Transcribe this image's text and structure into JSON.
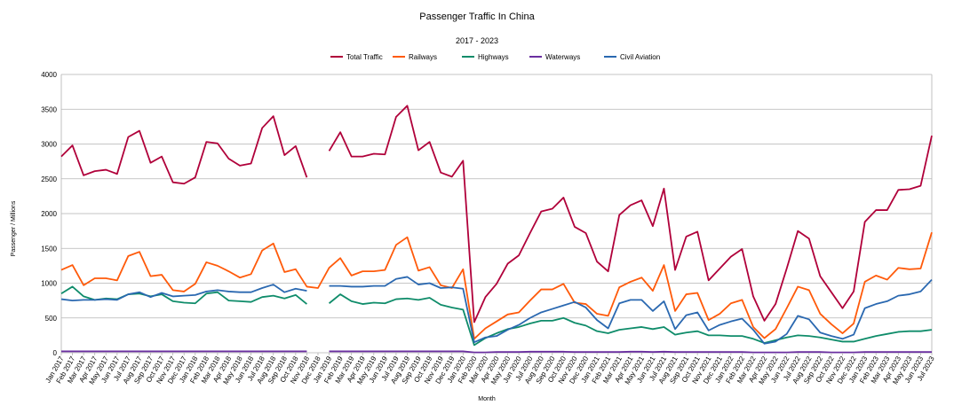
{
  "chart_data": {
    "type": "line",
    "title": "Passenger Traffic In China",
    "subtitle": "2017 - 2023",
    "xlabel": "Month",
    "ylabel": "Passenger / Millions",
    "ylim": [
      0,
      4000
    ],
    "yticks": [
      0,
      500,
      1000,
      1500,
      2000,
      2500,
      3000,
      3500,
      4000
    ],
    "grid": true,
    "legend": "top-center",
    "categories": [
      "Jan 2017",
      "Feb 2017",
      "Mar 2017",
      "Apr 2017",
      "May 2017",
      "Jun 2017",
      "Jul 2017",
      "Aug 2017",
      "Sep 2017",
      "Oct 2017",
      "Nov 2017",
      "Dec 2017",
      "Jan 2018",
      "Feb 2018",
      "Mar 2018",
      "Apr 2018",
      "May 2018",
      "Jun 2018",
      "Jul 2018",
      "Aug 2018",
      "Sep 2018",
      "Oct 2018",
      "Nov 2018",
      "Dec 2018",
      "Jan 2019",
      "Feb 2019",
      "Mar 2019",
      "Apr 2019",
      "May 2019",
      "Jun 2019",
      "Jul 2019",
      "Aug 2019",
      "Sep 2019",
      "Oct 2019",
      "Nov 2019",
      "Dec 2019",
      "Jan 2020",
      "Feb 2020",
      "Mar 2020",
      "Apr 2020",
      "May 2020",
      "Jun 2020",
      "Jul 2020",
      "Aug 2020",
      "Sep 2020",
      "Oct 2020",
      "Nov 2020",
      "Dec 2020",
      "Jan 2021",
      "Feb 2021",
      "Mar 2021",
      "Apr 2021",
      "May 2021",
      "Jun 2021",
      "Jul 2021",
      "Aug 2021",
      "Sep 2021",
      "Oct 2021",
      "Nov 2021",
      "Dec 2021",
      "Jan 2022",
      "Feb 2022",
      "Mar 2022",
      "Apr 2022",
      "May 2022",
      "Jun 2022",
      "Jul 2022",
      "Aug 2022",
      "Sep 2022",
      "Oct 2022",
      "Nov 2022",
      "Dec 2022",
      "Jan 2023",
      "Feb 2023",
      "Mar 2023",
      "Apr 2023",
      "May 2023",
      "Jun 2023",
      "Jul 2023"
    ],
    "series": [
      {
        "name": "Total Traffic",
        "color": "#b0003a",
        "values": [
          2820,
          2980,
          2550,
          2610,
          2630,
          2570,
          3100,
          3190,
          2730,
          2820,
          2450,
          2430,
          2520,
          3030,
          3010,
          2790,
          2690,
          2720,
          3230,
          3400,
          2840,
          2970,
          2520,
          null,
          2900,
          3170,
          2820,
          2820,
          2860,
          2850,
          3390,
          3550,
          2910,
          3030,
          2590,
          2530,
          2760,
          440,
          800,
          990,
          1280,
          1400,
          1720,
          2030,
          2070,
          2230,
          1810,
          1720,
          1310,
          1170,
          1980,
          2120,
          2190,
          1820,
          2360,
          1190,
          1670,
          1740,
          1040,
          1210,
          1380,
          1490,
          810,
          460,
          700,
          1210,
          1750,
          1640,
          1100,
          870,
          640,
          880,
          1880,
          2050,
          2050,
          2340,
          2350,
          2400,
          3120
        ]
      },
      {
        "name": "Railways",
        "color": "#ff5a0a",
        "values": [
          1190,
          1260,
          970,
          1070,
          1070,
          1040,
          1390,
          1450,
          1100,
          1120,
          900,
          880,
          990,
          1300,
          1250,
          1170,
          1080,
          1130,
          1470,
          1570,
          1160,
          1200,
          950,
          930,
          1220,
          1360,
          1110,
          1170,
          1170,
          1190,
          1550,
          1660,
          1180,
          1230,
          970,
          930,
          1200,
          200,
          350,
          450,
          550,
          580,
          750,
          910,
          910,
          990,
          720,
          700,
          560,
          530,
          940,
          1020,
          1080,
          890,
          1260,
          600,
          840,
          860,
          470,
          560,
          710,
          760,
          370,
          210,
          340,
          640,
          950,
          900,
          560,
          410,
          280,
          420,
          1020,
          1110,
          1050,
          1220,
          1200,
          1210,
          1730
        ]
      },
      {
        "name": "Highways",
        "color": "#0f8c6a",
        "values": [
          850,
          950,
          810,
          760,
          780,
          770,
          840,
          850,
          810,
          840,
          740,
          720,
          710,
          850,
          870,
          750,
          740,
          730,
          800,
          820,
          780,
          830,
          700,
          null,
          710,
          840,
          740,
          700,
          720,
          710,
          770,
          780,
          760,
          790,
          690,
          650,
          620,
          110,
          210,
          280,
          340,
          370,
          420,
          460,
          460,
          500,
          430,
          390,
          310,
          280,
          330,
          350,
          370,
          340,
          370,
          260,
          290,
          310,
          250,
          250,
          240,
          240,
          200,
          140,
          180,
          220,
          250,
          240,
          220,
          190,
          160,
          160,
          200,
          240,
          270,
          300,
          310,
          310,
          330
        ]
      },
      {
        "name": "Waterways",
        "color": "#6a2fa0",
        "values": [
          20,
          20,
          20,
          20,
          20,
          20,
          20,
          20,
          20,
          20,
          20,
          20,
          20,
          20,
          20,
          20,
          20,
          20,
          20,
          20,
          20,
          20,
          20,
          null,
          20,
          20,
          20,
          20,
          20,
          20,
          20,
          20,
          20,
          20,
          20,
          20,
          20,
          5,
          5,
          10,
          10,
          10,
          15,
          15,
          15,
          15,
          10,
          10,
          10,
          10,
          10,
          15,
          15,
          10,
          15,
          10,
          10,
          10,
          10,
          10,
          10,
          10,
          5,
          5,
          5,
          5,
          10,
          10,
          10,
          5,
          5,
          5,
          10,
          10,
          10,
          10,
          10,
          10,
          10
        ]
      },
      {
        "name": "Civil Aviation",
        "color": "#2a68b0",
        "values": [
          770,
          750,
          760,
          760,
          770,
          760,
          840,
          870,
          800,
          860,
          810,
          820,
          830,
          880,
          900,
          880,
          870,
          870,
          930,
          980,
          870,
          920,
          890,
          null,
          960,
          960,
          950,
          950,
          960,
          960,
          1060,
          1090,
          980,
          1000,
          930,
          940,
          920,
          150,
          220,
          240,
          330,
          400,
          500,
          580,
          630,
          680,
          730,
          650,
          470,
          350,
          710,
          760,
          760,
          600,
          740,
          340,
          540,
          580,
          320,
          400,
          450,
          490,
          330,
          130,
          160,
          270,
          530,
          480,
          290,
          240,
          200,
          260,
          640,
          700,
          740,
          820,
          840,
          880,
          1050
        ]
      }
    ]
  }
}
